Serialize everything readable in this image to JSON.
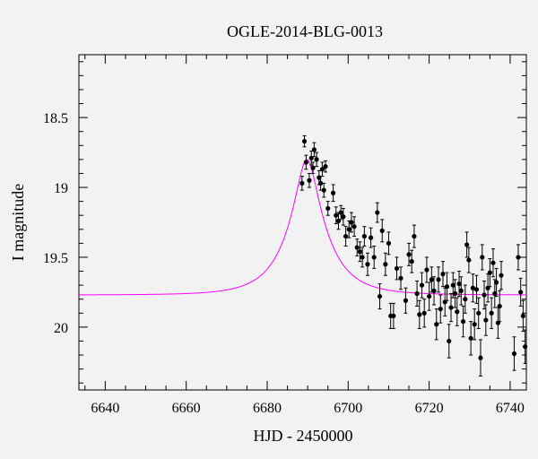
{
  "chart_data": {
    "type": "scatter",
    "title": "OGLE-2014-BLG-0013",
    "xlabel": "HJD - 2450000",
    "ylabel": "I magnitude",
    "xlim": [
      6633.5,
      6744
    ],
    "ylim": [
      20.45,
      18.05
    ],
    "y_inverted": true,
    "x_ticks": [
      6640,
      6660,
      6680,
      6700,
      6720,
      6740
    ],
    "x_tick_labels": [
      "6640",
      "6660",
      "6680",
      "6700",
      "6720",
      "6740"
    ],
    "y_ticks": [
      18.5,
      19,
      19.5,
      20
    ],
    "y_tick_labels": [
      "18.5",
      "19",
      "19.5",
      "20"
    ],
    "grid": false,
    "colors": {
      "model": "#ff00ff",
      "points": "#000000",
      "background": "#f2f2f2"
    },
    "model": {
      "name": "",
      "baseline": 19.77,
      "peak_mag": 18.8,
      "t0": 6689.8,
      "tE": 9.5,
      "u0": 0.26
    },
    "points": [
      [
        6688.6,
        18.97,
        0.05
      ],
      [
        6689.2,
        18.67,
        0.04
      ],
      [
        6689.6,
        18.82,
        0.05
      ],
      [
        6690.4,
        18.95,
        0.05
      ],
      [
        6690.9,
        18.79,
        0.05
      ],
      [
        6691.3,
        18.86,
        0.04
      ],
      [
        6691.6,
        18.73,
        0.05
      ],
      [
        6692.2,
        18.8,
        0.05
      ],
      [
        6692.8,
        18.93,
        0.05
      ],
      [
        6693.2,
        18.97,
        0.05
      ],
      [
        6693.6,
        18.87,
        0.05
      ],
      [
        6694.0,
        19.02,
        0.05
      ],
      [
        6694.4,
        18.85,
        0.04
      ],
      [
        6695.0,
        19.15,
        0.05
      ],
      [
        6696.3,
        19.04,
        0.06
      ],
      [
        6697.0,
        19.2,
        0.06
      ],
      [
        6697.6,
        19.24,
        0.06
      ],
      [
        6698.2,
        19.18,
        0.05
      ],
      [
        6698.8,
        19.21,
        0.06
      ],
      [
        6699.4,
        19.35,
        0.07
      ],
      [
        6700.2,
        19.3,
        0.06
      ],
      [
        6700.8,
        19.25,
        0.07
      ],
      [
        6701.5,
        19.28,
        0.07
      ],
      [
        6702.2,
        19.43,
        0.06
      ],
      [
        6702.9,
        19.46,
        0.07
      ],
      [
        6703.5,
        19.5,
        0.07
      ],
      [
        6704.0,
        19.35,
        0.07
      ],
      [
        6704.8,
        19.55,
        0.08
      ],
      [
        6705.6,
        19.36,
        0.07
      ],
      [
        6706.4,
        19.5,
        0.08
      ],
      [
        6707.2,
        19.18,
        0.07
      ],
      [
        6707.8,
        19.78,
        0.09
      ],
      [
        6708.4,
        19.31,
        0.08
      ],
      [
        6709.2,
        19.55,
        0.08
      ],
      [
        6710.0,
        19.4,
        0.08
      ],
      [
        6710.5,
        19.92,
        0.09
      ],
      [
        6711.2,
        19.92,
        0.09
      ],
      [
        6712.0,
        19.58,
        0.08
      ],
      [
        6713.0,
        19.65,
        0.08
      ],
      [
        6714.2,
        19.81,
        0.09
      ],
      [
        6715.0,
        19.48,
        0.08
      ],
      [
        6715.7,
        19.53,
        0.08
      ],
      [
        6716.3,
        19.35,
        0.08
      ],
      [
        6717.0,
        19.76,
        0.09
      ],
      [
        6717.6,
        19.91,
        0.1
      ],
      [
        6718.2,
        19.7,
        0.09
      ],
      [
        6718.8,
        19.9,
        0.1
      ],
      [
        6719.4,
        19.59,
        0.09
      ],
      [
        6720.0,
        19.78,
        0.1
      ],
      [
        6720.6,
        19.66,
        0.09
      ],
      [
        6721.2,
        19.74,
        0.1
      ],
      [
        6721.8,
        19.98,
        0.11
      ],
      [
        6722.3,
        19.66,
        0.09
      ],
      [
        6722.8,
        19.87,
        0.1
      ],
      [
        6723.4,
        19.62,
        0.09
      ],
      [
        6723.9,
        19.82,
        0.1
      ],
      [
        6724.4,
        19.71,
        0.1
      ],
      [
        6724.9,
        20.1,
        0.12
      ],
      [
        6725.4,
        19.86,
        0.1
      ],
      [
        6725.9,
        19.7,
        0.09
      ],
      [
        6726.4,
        19.76,
        0.1
      ],
      [
        6726.9,
        19.89,
        0.1
      ],
      [
        6727.4,
        19.69,
        0.09
      ],
      [
        6727.9,
        19.74,
        0.1
      ],
      [
        6728.4,
        19.96,
        0.11
      ],
      [
        6728.9,
        19.8,
        0.1
      ],
      [
        6729.3,
        19.41,
        0.09
      ],
      [
        6729.8,
        19.52,
        0.09
      ],
      [
        6730.3,
        20.08,
        0.12
      ],
      [
        6730.8,
        19.72,
        0.1
      ],
      [
        6731.2,
        19.98,
        0.11
      ],
      [
        6731.7,
        19.73,
        0.1
      ],
      [
        6732.2,
        19.9,
        0.11
      ],
      [
        6732.7,
        20.22,
        0.13
      ],
      [
        6733.1,
        19.5,
        0.09
      ],
      [
        6733.6,
        19.77,
        0.1
      ],
      [
        6734.0,
        19.95,
        0.11
      ],
      [
        6734.5,
        19.72,
        0.1
      ],
      [
        6735.0,
        19.61,
        0.1
      ],
      [
        6735.4,
        19.9,
        0.11
      ],
      [
        6735.8,
        19.54,
        0.1
      ],
      [
        6736.2,
        19.76,
        0.1
      ],
      [
        6736.6,
        19.68,
        0.1
      ],
      [
        6737.0,
        19.97,
        0.11
      ],
      [
        6737.4,
        19.85,
        0.11
      ],
      [
        6737.8,
        19.63,
        0.1
      ],
      [
        6741.0,
        20.19,
        0.12
      ],
      [
        6742.0,
        19.5,
        0.09
      ],
      [
        6742.6,
        19.75,
        0.1
      ],
      [
        6743.2,
        19.92,
        0.11
      ],
      [
        6743.7,
        20.14,
        0.12
      ]
    ]
  }
}
